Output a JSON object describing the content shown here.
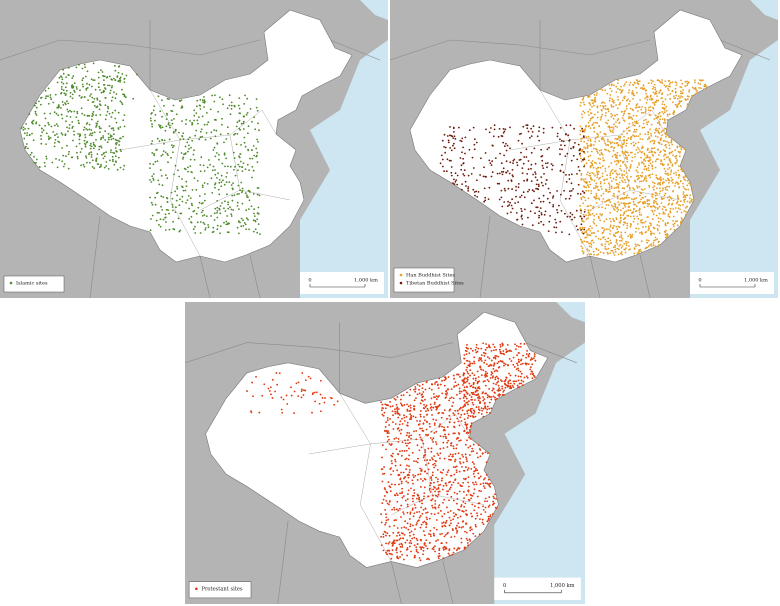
{
  "panels": [
    {
      "legend": [
        {
          "label": "Islamic sites",
          "color": "#4f8a2b"
        }
      ],
      "scale": {
        "start": "0",
        "end": "1,000 km"
      }
    },
    {
      "legend": [
        {
          "label": "Han Buddhist Sites",
          "color": "#e6a02a"
        },
        {
          "label": "Tibetan Buddhist Sites",
          "color": "#6b1a0c"
        }
      ],
      "scale": {
        "start": "0",
        "end": "1,000 km"
      }
    },
    {
      "legend": [
        {
          "label": "Protestant sites",
          "color": "#e03a12"
        }
      ],
      "scale": {
        "start": "0",
        "end": "1,000 km"
      }
    }
  ]
}
